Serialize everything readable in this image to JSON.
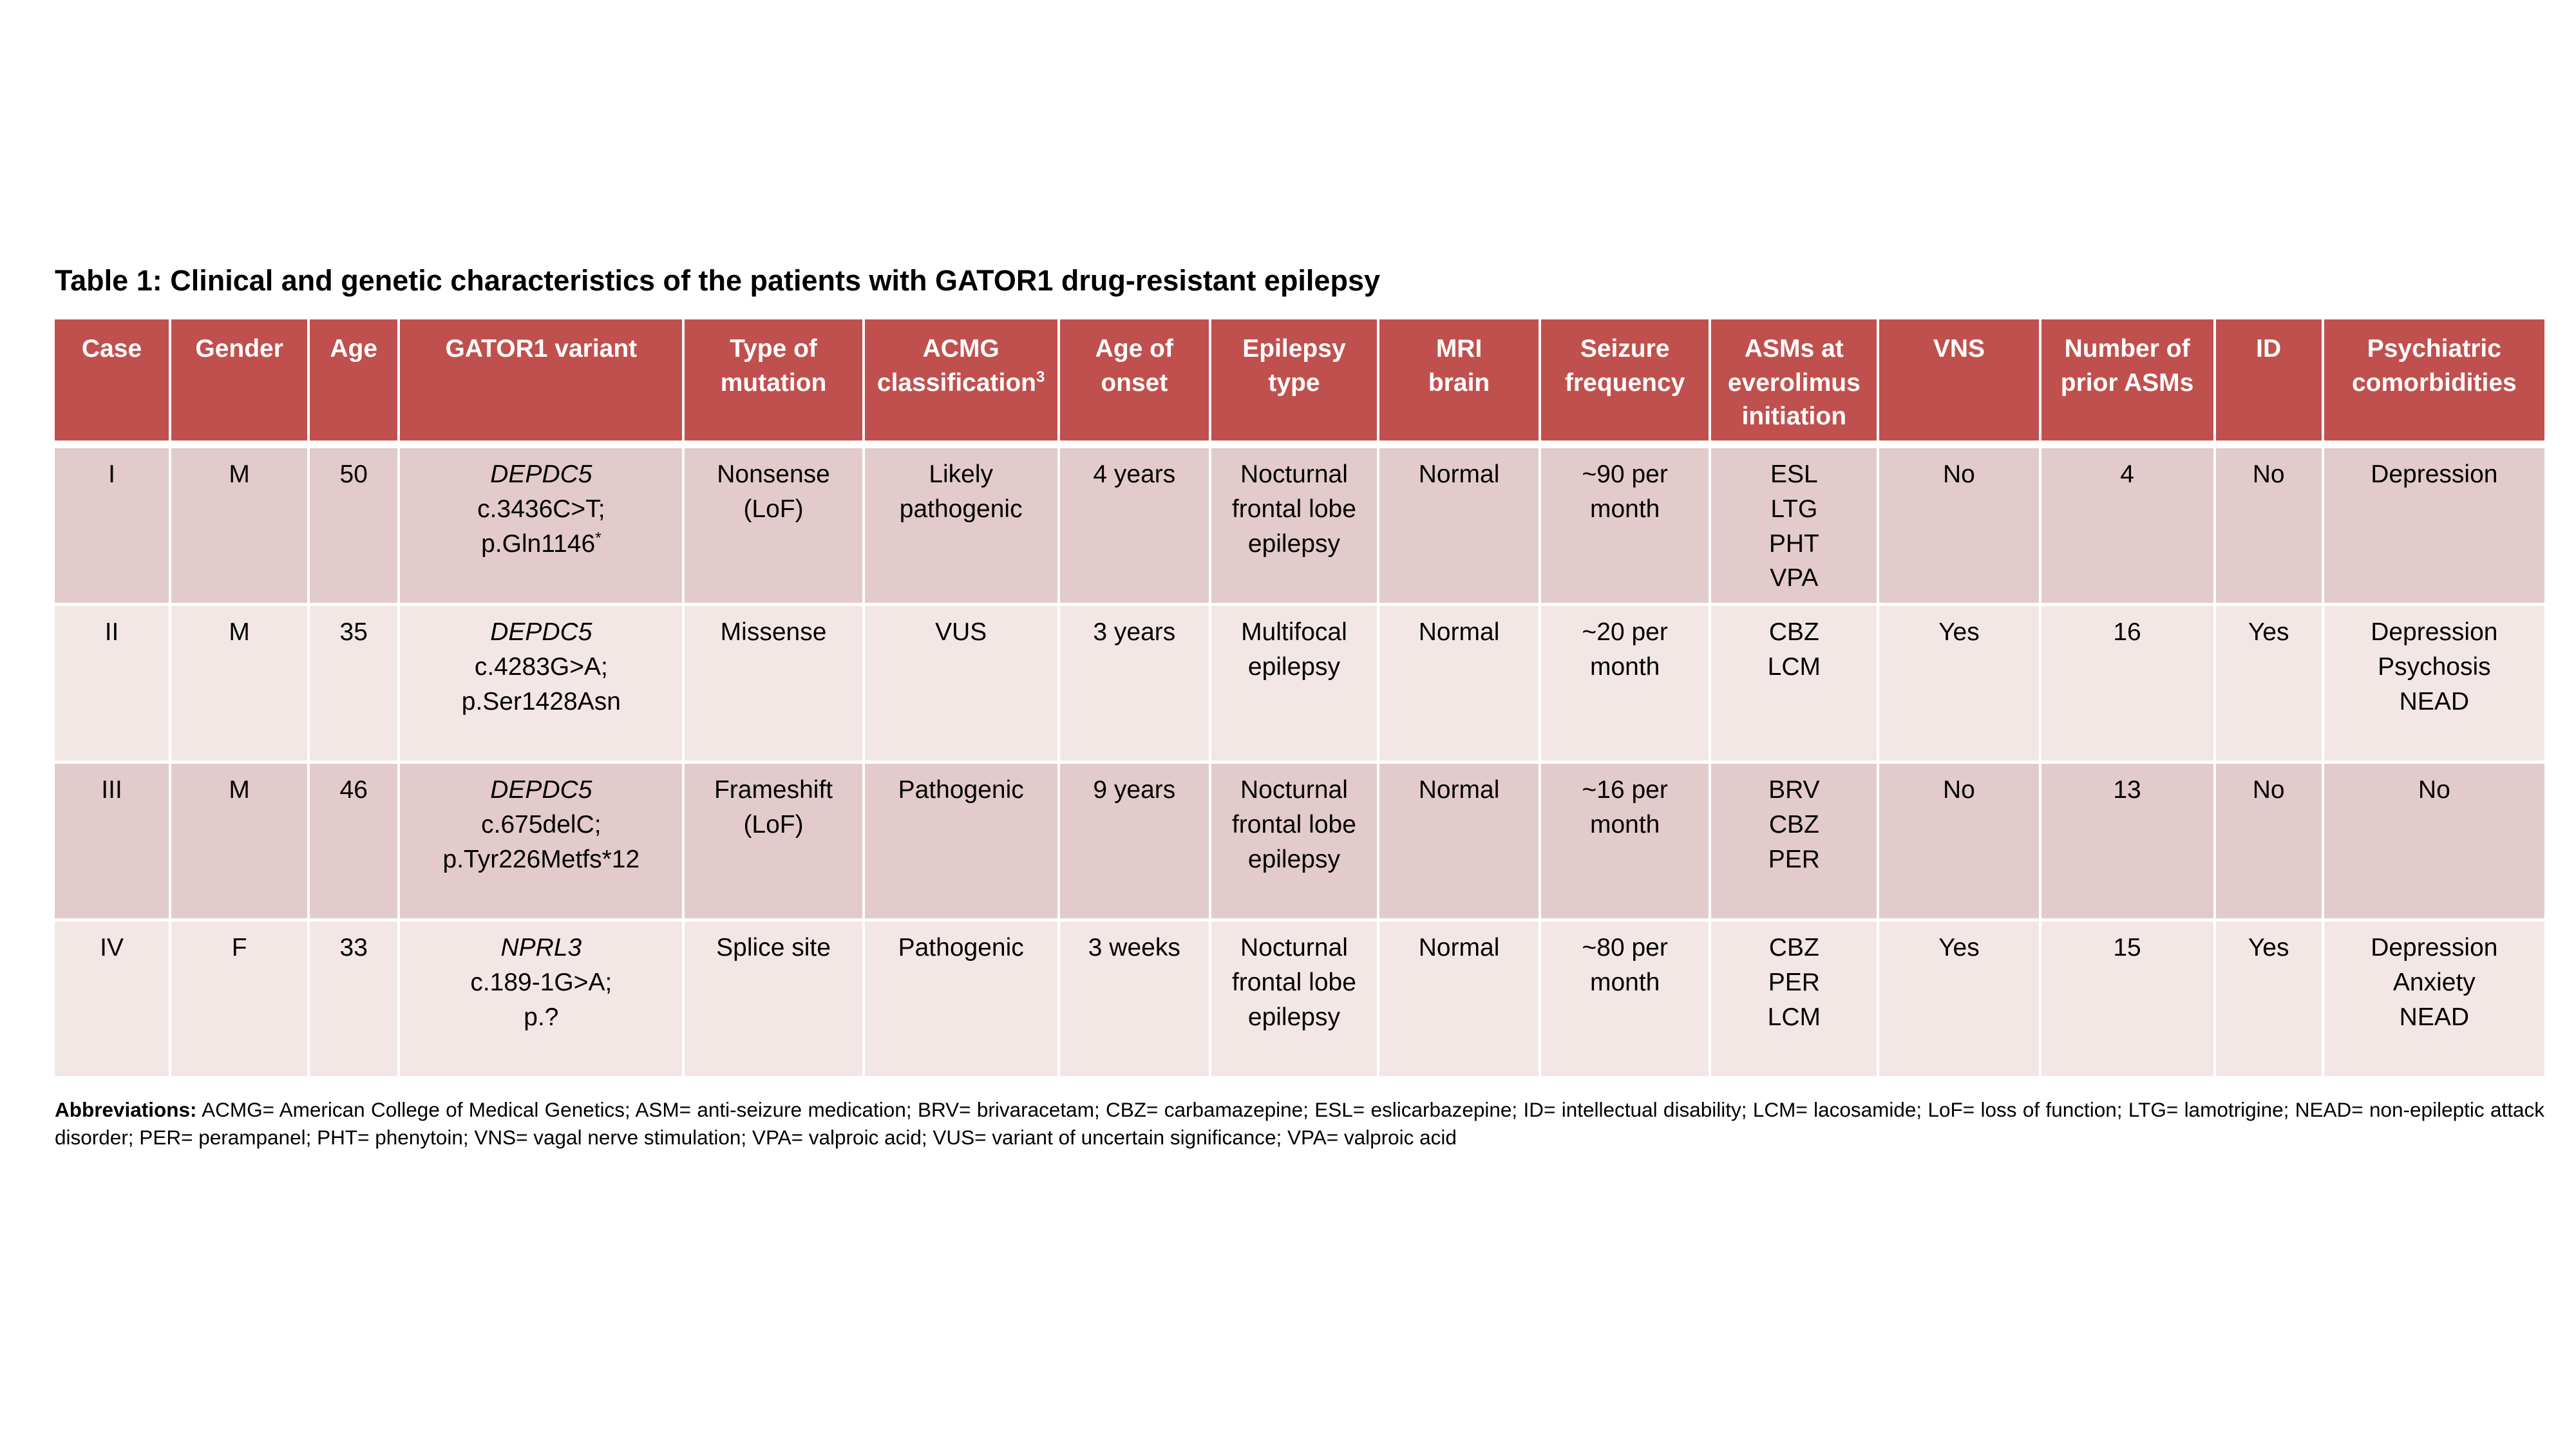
{
  "title": "Table 1: Clinical and genetic characteristics of the patients with GATOR1 drug-resistant epilepsy",
  "colors": {
    "header_bg": "#C0504D",
    "band_dark": "#E2CBCA",
    "band_light": "#F3E7E6",
    "header_text": "#FFFFFF",
    "body_text": "#000000"
  },
  "table": {
    "columns": [
      {
        "id": "case",
        "lines": [
          "Case"
        ]
      },
      {
        "id": "gender",
        "lines": [
          "Gender"
        ]
      },
      {
        "id": "age",
        "lines": [
          "Age"
        ]
      },
      {
        "id": "gator1-variant",
        "lines": [
          "GATOR1 variant"
        ]
      },
      {
        "id": "type-of-mutation",
        "lines": [
          "Type of",
          "mutation"
        ]
      },
      {
        "id": "acmg-classification",
        "lines": [
          "ACMG",
          "classification"
        ],
        "sup": "3"
      },
      {
        "id": "age-of-onset",
        "lines": [
          "Age of",
          "onset"
        ]
      },
      {
        "id": "epilepsy-type",
        "lines": [
          "Epilepsy",
          "type"
        ]
      },
      {
        "id": "mri-brain",
        "lines": [
          "MRI",
          "brain"
        ]
      },
      {
        "id": "seizure-frequency",
        "lines": [
          "Seizure",
          "frequency"
        ]
      },
      {
        "id": "asms-at-everolimus-initiation",
        "lines": [
          "ASMs at",
          "everolimus",
          "initiation"
        ]
      },
      {
        "id": "vns",
        "lines": [
          "VNS"
        ]
      },
      {
        "id": "number-of-prior-asms",
        "lines": [
          "Number of",
          "prior ASMs"
        ]
      },
      {
        "id": "id",
        "lines": [
          "ID"
        ]
      },
      {
        "id": "psychiatric-comorbidities",
        "lines": [
          "Psychiatric",
          "comorbidities"
        ]
      }
    ],
    "rows": [
      [
        "I",
        "M",
        "50",
        [
          {
            "t": "DEPDC5",
            "italic": true
          },
          {
            "t": "c.3436C>T;"
          },
          {
            "t": "p.Gln1146",
            "sup": "*"
          }
        ],
        [
          "Nonsense",
          "(LoF)"
        ],
        [
          "Likely",
          "pathogenic"
        ],
        "4 years",
        [
          "Nocturnal",
          "frontal lobe",
          "epilepsy"
        ],
        "Normal",
        [
          "~90 per",
          "month"
        ],
        [
          "ESL",
          "LTG",
          "PHT",
          "VPA"
        ],
        "No",
        "4",
        "No",
        [
          "Depression"
        ]
      ],
      [
        "II",
        "M",
        "35",
        [
          {
            "t": "DEPDC5",
            "italic": true
          },
          {
            "t": "c.4283G>A;"
          },
          {
            "t": "p.Ser1428Asn"
          }
        ],
        [
          "Missense"
        ],
        [
          "VUS"
        ],
        "3 years",
        [
          "Multifocal",
          "epilepsy"
        ],
        "Normal",
        [
          "~20 per",
          "month"
        ],
        [
          "CBZ",
          "LCM"
        ],
        "Yes",
        "16",
        "Yes",
        [
          "Depression",
          "Psychosis",
          "NEAD"
        ]
      ],
      [
        "III",
        "M",
        "46",
        [
          {
            "t": "DEPDC5",
            "italic": true
          },
          {
            "t": "c.675delC;"
          },
          {
            "t": "p.Tyr226Metfs*12"
          }
        ],
        [
          "Frameshift",
          "(LoF)"
        ],
        [
          "Pathogenic"
        ],
        "9 years",
        [
          "Nocturnal",
          "frontal lobe",
          "epilepsy"
        ],
        "Normal",
        [
          "~16 per",
          "month"
        ],
        [
          "BRV",
          "CBZ",
          "PER"
        ],
        "No",
        "13",
        "No",
        [
          "No"
        ]
      ],
      [
        "IV",
        "F",
        "33",
        [
          {
            "t": "NPRL3",
            "italic": true
          },
          {
            "t": "c.189-1G>A;"
          },
          {
            "t": "p.?"
          }
        ],
        [
          "Splice site"
        ],
        [
          "Pathogenic"
        ],
        "3 weeks",
        [
          "Nocturnal",
          "frontal lobe",
          "epilepsy"
        ],
        "Normal",
        [
          "~80 per",
          "month"
        ],
        [
          "CBZ",
          "PER",
          "LCM"
        ],
        "Yes",
        "15",
        "Yes",
        [
          "Depression",
          "Anxiety",
          "NEAD"
        ]
      ]
    ]
  },
  "footnote": {
    "label": "Abbreviations:",
    "text": " ACMG= American College of Medical Genetics; ASM= anti-seizure medication; BRV= brivaracetam; CBZ= carbamazepine; ESL= eslicarbazepine; ID= intellectual disability; LCM= lacosamide; LoF= loss of function; LTG= lamotrigine; NEAD= non-epileptic attack disorder; PER= perampanel; PHT= phenytoin; VNS= vagal nerve stimulation; VPA= valproic acid; VUS= variant of uncertain significance; VPA= valproic acid"
  }
}
